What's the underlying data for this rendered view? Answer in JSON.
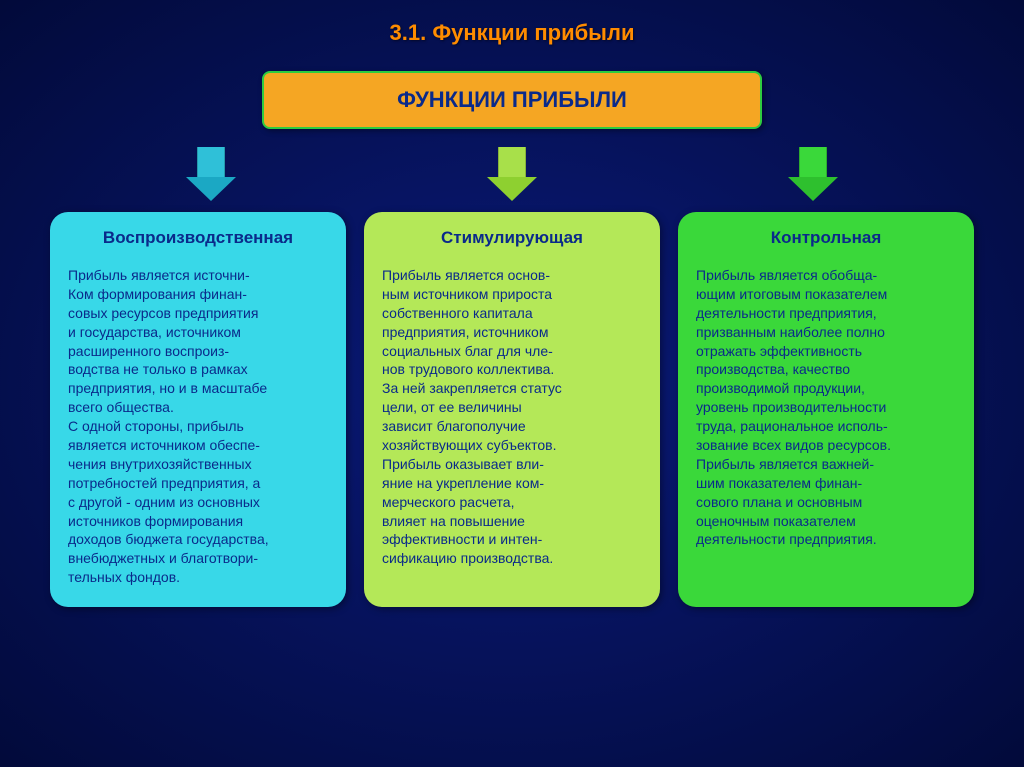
{
  "slide": {
    "title": "3.1. Функции прибыли",
    "title_color": "#ff8c00",
    "background": "radial-gradient(ellipse at center, #0a1a7a 0%, #020a3a 100%)",
    "header": {
      "label": "ФУНКЦИИ  ПРИБЫЛИ",
      "bg_color": "#f5a623",
      "text_color": "#0a2a8a",
      "border_color": "#2ecc40"
    },
    "arrows": [
      {
        "stem_color": "#2fc0d8",
        "head_color": "#1ba8c4"
      },
      {
        "stem_color": "#a8e04a",
        "head_color": "#8ed030"
      },
      {
        "stem_color": "#3ad83a",
        "head_color": "#2ec02e"
      }
    ],
    "columns": [
      {
        "title": "Воспроизводственная",
        "title_color": "#0a2a8a",
        "bg_color": "#38d8e8",
        "body_color": "#0a2a8a",
        "body": "Прибыль является источни-\nКом формирования финан-\nсовых ресурсов предприятия\nи государства, источником\n расширенного воспроиз-\nводства не только в рамках\nпредприятия, но и в масштабе\nвсего общества.\nС одной стороны,  прибыль\nявляется источником обеспе-\nчения внутрихозяйственных\nпотребностей предприятия, а\nс другой - одним из основных\nисточников формирования\nдоходов бюджета государства,\n внебюджетных и благотвори-\nтельных фондов."
      },
      {
        "title": "Стимулирующая",
        "title_color": "#0a2a8a",
        "bg_color": "#b4e858",
        "body_color": "#0a2a8a",
        "body": "Прибыль является основ-\nным источником прироста\nсобственного капитала\nпредприятия, источником\nсоциальных благ для чле-\nнов трудового коллектива.\nЗа ней закрепляется статус\nцели, от ее величины\nзависит благополучие\nхозяйствующих субъектов.\nПрибыль оказывает вли-\nяние на укрепление ком-\nмерческого расчета,\nвлияет на повышение\nэффективности и интен-\nсификацию производства."
      },
      {
        "title": "Контрольная",
        "title_color": "#0a2a8a",
        "bg_color": "#3ad83a",
        "body_color": "#0a2a8a",
        "body": "Прибыль является обобща-\nющим итоговым показателем\nдеятельности предприятия,\nпризванным наиболее полно\nотражать эффективность\nпроизводства, качество\nпроизводимой продукции,\nуровень производительности\nтруда, рациональное исполь-\nзование всех видов ресурсов.\nПрибыль является важней-\nшим показателем финан-\nсового плана и основным\nоценочным показателем\nдеятельности предприятия."
      }
    ]
  }
}
